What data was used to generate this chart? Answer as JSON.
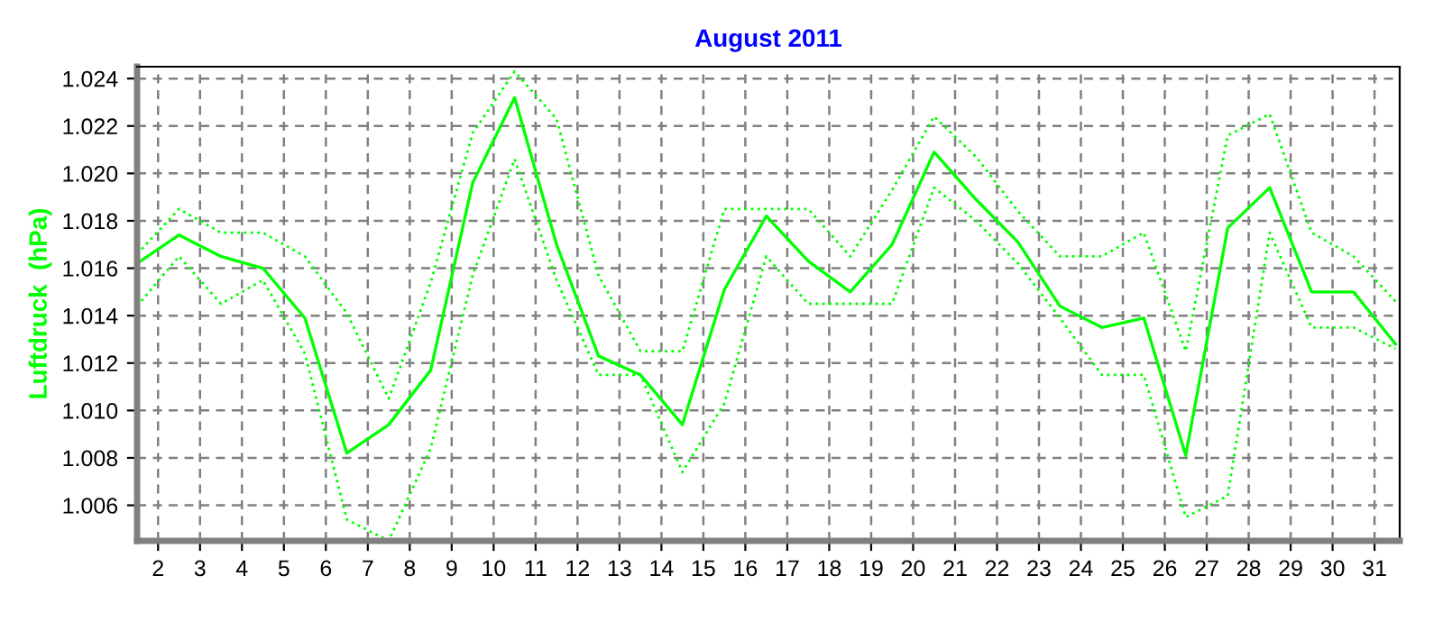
{
  "chart_data": {
    "type": "line",
    "title": "August 2011",
    "ylabel": "Luftdruck  (hPa)",
    "x": [
      1.5,
      2.5,
      3.5,
      4.5,
      5.5,
      6.5,
      7.5,
      8.5,
      9.5,
      10.5,
      11.5,
      12.5,
      13.5,
      14.5,
      15.5,
      16.5,
      17.5,
      18.5,
      19.5,
      20.5,
      21.5,
      22.5,
      23.5,
      24.5,
      25.5,
      26.5,
      27.5,
      28.5,
      29.5,
      30.5,
      31.5
    ],
    "series": [
      {
        "color": "#00ff00",
        "line_style": "solid",
        "values": [
          1.0162,
          1.0174,
          1.0165,
          1.016,
          1.0139,
          1.0082,
          1.0094,
          1.0117,
          1.0196,
          1.0232,
          1.017,
          1.0123,
          1.0115,
          1.0094,
          1.0151,
          1.0182,
          1.0163,
          1.015,
          1.017,
          1.0209,
          1.0189,
          1.0171,
          1.0144,
          1.0135,
          1.0139,
          1.0081,
          1.0177,
          1.0194,
          1.015,
          1.015,
          1.0128
        ]
      },
      {
        "color": "#00ff00",
        "line_style": "dotted",
        "values": [
          1.0166,
          1.0185,
          1.0175,
          1.0175,
          1.0165,
          1.0141,
          1.0105,
          1.0154,
          1.0217,
          1.0243,
          1.0223,
          1.0157,
          1.0125,
          1.0125,
          1.0185,
          1.0185,
          1.0185,
          1.0165,
          1.0193,
          1.0224,
          1.0207,
          1.0184,
          1.0165,
          1.0165,
          1.0175,
          1.0125,
          1.0216,
          1.0225,
          1.0175,
          1.0165,
          1.0146
        ]
      },
      {
        "color": "#00ff00",
        "line_style": "dotted",
        "values": [
          1.0144,
          1.0165,
          1.0145,
          1.0155,
          1.0124,
          1.0054,
          1.0045,
          1.0084,
          1.0157,
          1.0206,
          1.0155,
          1.0115,
          1.0115,
          1.0074,
          1.0103,
          1.0165,
          1.0145,
          1.0145,
          1.0145,
          1.0194,
          1.018,
          1.0162,
          1.0139,
          1.0115,
          1.0115,
          1.0055,
          1.0064,
          1.0175,
          1.0135,
          1.0135,
          1.0126
        ]
      }
    ],
    "xlim": [
      1.5,
      31.6
    ],
    "ylim": [
      1.0045,
      1.0245
    ],
    "xticks": [
      2,
      3,
      4,
      5,
      6,
      7,
      8,
      9,
      10,
      11,
      12,
      13,
      14,
      15,
      16,
      17,
      18,
      19,
      20,
      21,
      22,
      23,
      24,
      25,
      26,
      27,
      28,
      29,
      30,
      31
    ],
    "yticks": [
      {
        "value": 1.006,
        "label": "1.006"
      },
      {
        "value": 1.008,
        "label": "1.008"
      },
      {
        "value": 1.01,
        "label": "1.010"
      },
      {
        "value": 1.012,
        "label": "1.012"
      },
      {
        "value": 1.014,
        "label": "1.014"
      },
      {
        "value": 1.016,
        "label": "1.016"
      },
      {
        "value": 1.018,
        "label": "1.018"
      },
      {
        "value": 1.02,
        "label": "1.020"
      },
      {
        "value": 1.022,
        "label": "1.022"
      },
      {
        "value": 1.024,
        "label": "1.024"
      }
    ],
    "grid": true,
    "marker": "none"
  }
}
